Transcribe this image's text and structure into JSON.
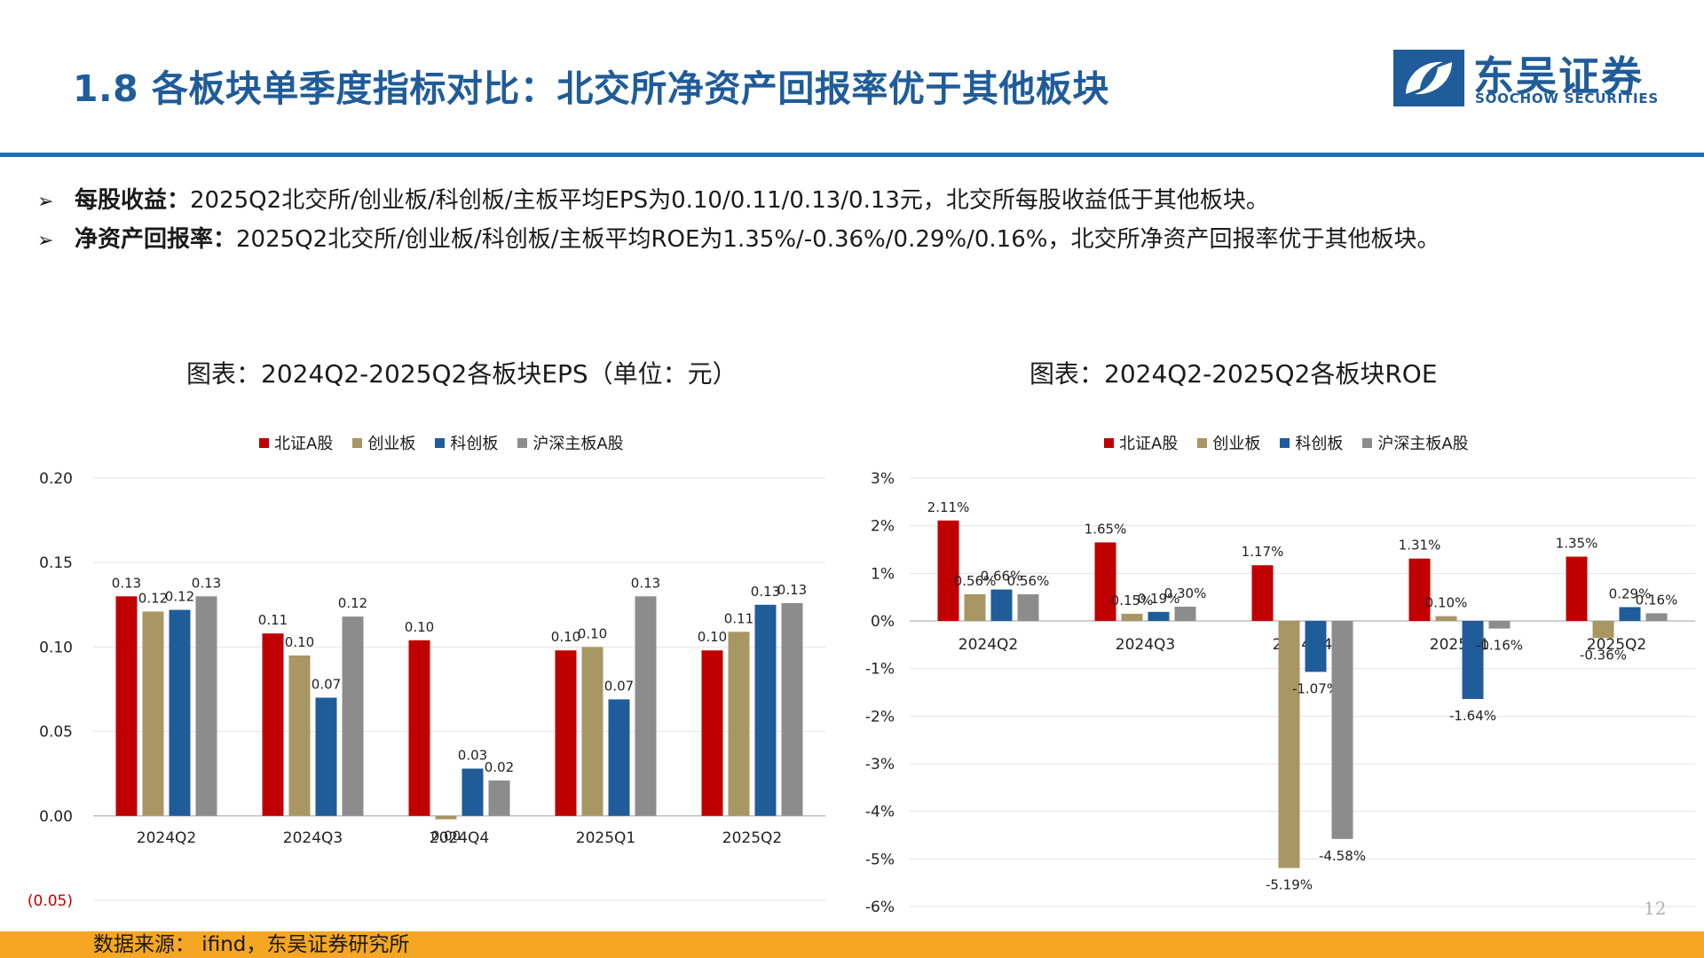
{
  "header": {
    "title": "1.8 各板块单季度指标对比：北交所净资产回报率优于其他板块",
    "logo_cn": "东吴证券",
    "logo_en": "SOOCHOW SECURITIES",
    "accent_color": "#1f5c99"
  },
  "bullets": [
    {
      "lead": "每股收益：",
      "text": "2025Q2北交所/创业板/科创板/主板平均EPS为0.10/0.11/0.13/0.13元，北交所每股收益低于其他板块。"
    },
    {
      "lead": "净资产回报率：",
      "text": "2025Q2北交所/创业板/科创板/主板平均ROE为1.35%/-0.36%/0.29%/0.16%，北交所净资产回报率优于其他板块。"
    }
  ],
  "footer": {
    "source": "数据来源： ifind，东吴证券研究所",
    "page": "12"
  },
  "chart_data": [
    {
      "type": "bar",
      "title": "图表：2024Q2-2025Q2各板块EPS（单位：元）",
      "categories": [
        "2024Q2",
        "2024Q3",
        "2024Q4",
        "2025Q1",
        "2025Q2"
      ],
      "series": [
        {
          "name": "北证A股",
          "color": "#c00000",
          "values": [
            0.13,
            0.108,
            0.104,
            0.098,
            0.098
          ],
          "labels": [
            "0.13",
            "0.11",
            "0.10",
            "0.10",
            "0.10"
          ]
        },
        {
          "name": "创业板",
          "color": "#a89663",
          "values": [
            0.121,
            0.095,
            -0.002,
            0.1,
            0.109
          ],
          "labels": [
            "0.12",
            "0.10",
            "0.00",
            "0.10",
            "0.11"
          ]
        },
        {
          "name": "科创板",
          "color": "#1f5c99",
          "values": [
            0.122,
            0.07,
            0.028,
            0.069,
            0.125
          ],
          "labels": [
            "0.12",
            "0.07",
            "0.03",
            "0.07",
            "0.13"
          ]
        },
        {
          "name": "沪深主板A股",
          "color": "#8c8c8c",
          "values": [
            0.13,
            0.118,
            0.021,
            0.13,
            0.126
          ],
          "labels": [
            "0.13",
            "0.12",
            "0.02",
            "0.13",
            "0.13"
          ]
        }
      ],
      "ylim": [
        -0.05,
        0.2
      ],
      "yticks": [
        0.2,
        0.15,
        0.1,
        0.05,
        0.0,
        -0.05
      ],
      "ytick_labels": [
        "0.20",
        "0.15",
        "0.10",
        "0.05",
        "0.00",
        "(0.05)"
      ],
      "legend": "top-center",
      "grid": true
    },
    {
      "type": "bar",
      "title": "图表：2024Q2-2025Q2各板块ROE",
      "categories": [
        "2024Q2",
        "2024Q3",
        "2024Q4",
        "2025Q1",
        "2025Q2"
      ],
      "series": [
        {
          "name": "北证A股",
          "color": "#c00000",
          "values": [
            2.11,
            1.65,
            1.17,
            1.31,
            1.35
          ],
          "labels": [
            "2.11%",
            "1.65%",
            "1.17%",
            "1.31%",
            "1.35%"
          ]
        },
        {
          "name": "创业板",
          "color": "#a89663",
          "values": [
            0.56,
            0.15,
            -5.19,
            0.1,
            -0.36
          ],
          "labels": [
            "0.56%",
            "0.15%",
            "-5.19%",
            "0.10%",
            "-0.36%"
          ]
        },
        {
          "name": "科创板",
          "color": "#1f5c99",
          "values": [
            0.66,
            0.19,
            -1.07,
            -1.64,
            0.29
          ],
          "labels": [
            "0.66%",
            "0.19%",
            "-1.07%",
            "-1.64%",
            "0.29%"
          ]
        },
        {
          "name": "沪深主板A股",
          "color": "#8c8c8c",
          "values": [
            0.56,
            0.3,
            -4.58,
            -0.16,
            0.16
          ],
          "labels": [
            "0.56%",
            "0.30%",
            "-4.58%",
            "-0.16%",
            "0.16%"
          ]
        }
      ],
      "ylim": [
        -6,
        3
      ],
      "yticks": [
        3,
        2,
        1,
        0,
        -1,
        -2,
        -3,
        -4,
        -5,
        -6
      ],
      "ytick_labels": [
        "3%",
        "2%",
        "1%",
        "0%",
        "-1%",
        "-2%",
        "-3%",
        "-4%",
        "-5%",
        "-6%"
      ],
      "legend": "top-center",
      "grid": true
    }
  ]
}
